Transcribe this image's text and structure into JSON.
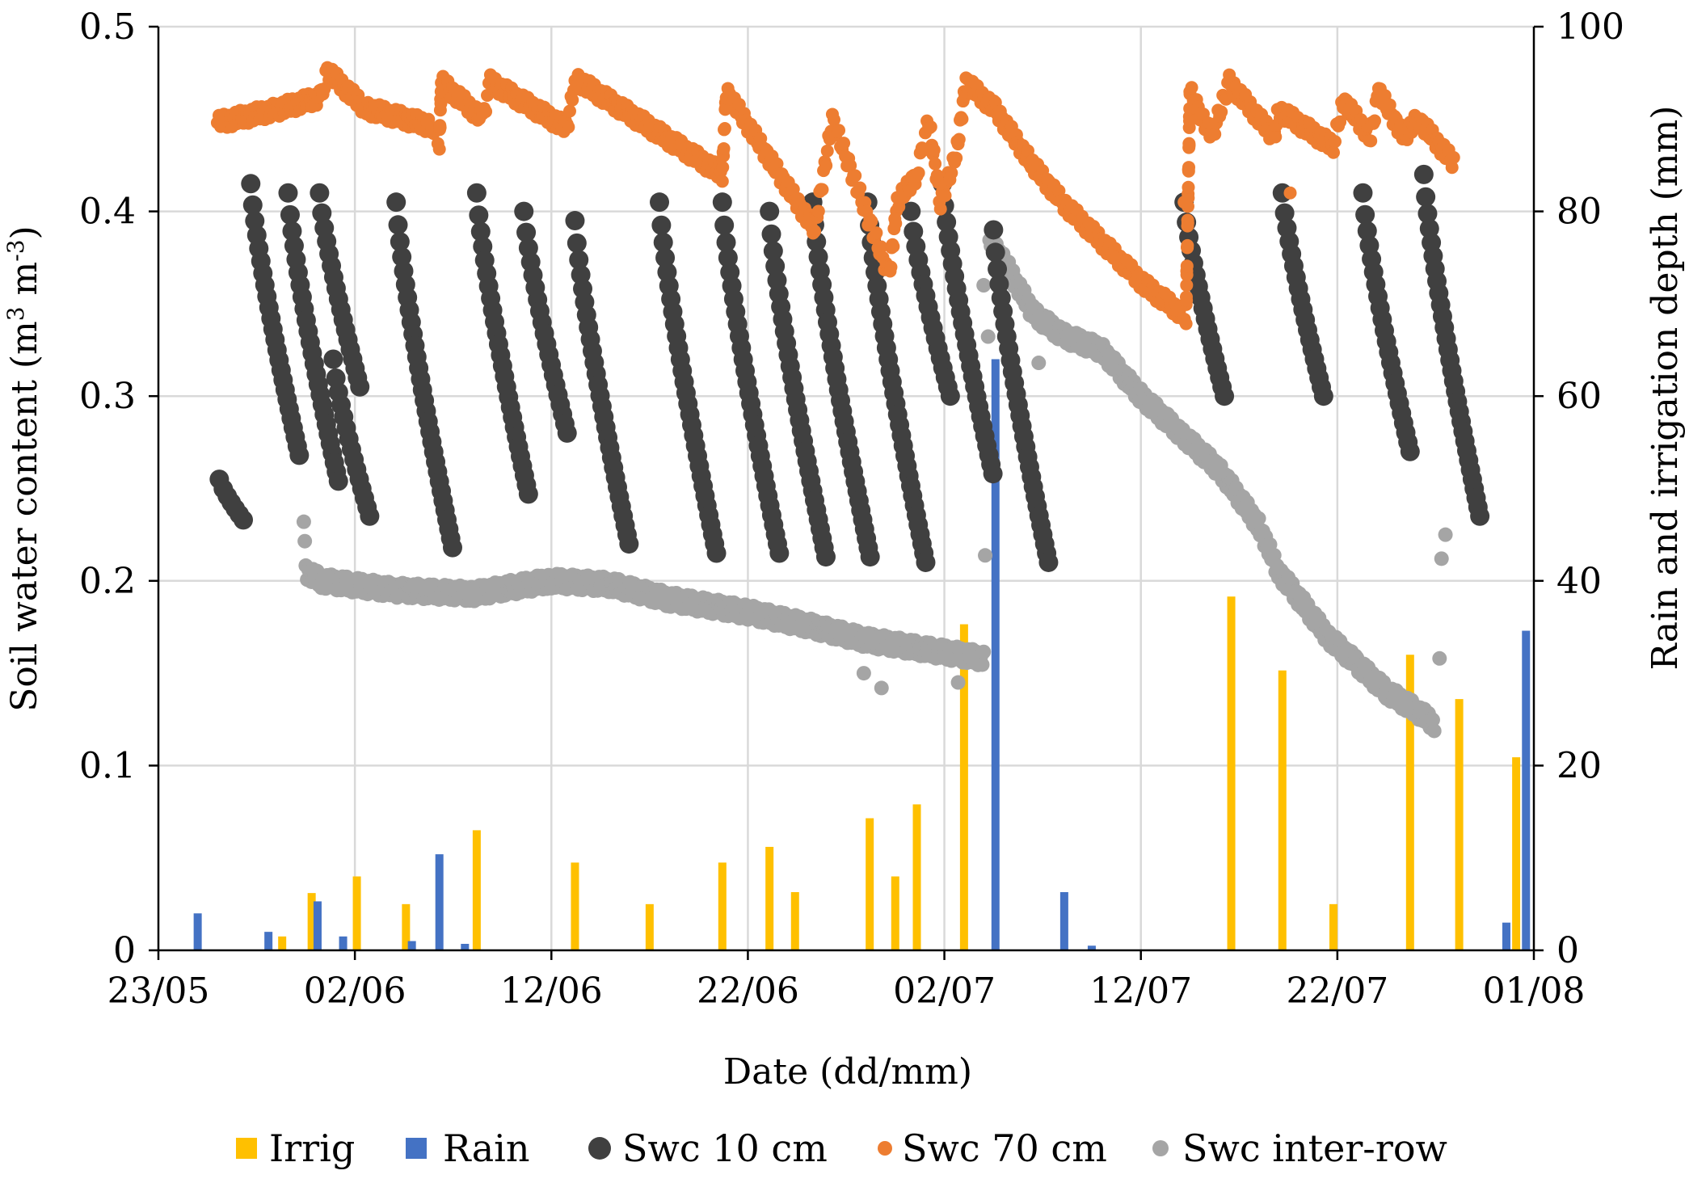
{
  "chart_data": {
    "type": "combo",
    "xlabel": "Date (dd/mm)",
    "ylabel_left": {
      "pre": "Soil water content (m",
      "sup1": "3",
      "mid": " m",
      "sup2": "-3",
      "post": ")"
    },
    "ylabel_right": "Rain and irrigation depth (mm)",
    "x_start_day": 0,
    "x_end_day": 70,
    "x_ticks": [
      {
        "day": 0,
        "label": "23/05"
      },
      {
        "day": 10,
        "label": "02/06"
      },
      {
        "day": 20,
        "label": "12/06"
      },
      {
        "day": 30,
        "label": "22/06"
      },
      {
        "day": 40,
        "label": "02/07"
      },
      {
        "day": 50,
        "label": "12/07"
      },
      {
        "day": 60,
        "label": "22/07"
      },
      {
        "day": 70,
        "label": "01/08"
      }
    ],
    "y_left_range": [
      0,
      0.5
    ],
    "y_left_ticks": [
      {
        "value": 0,
        "label": "0"
      },
      {
        "value": 0.1,
        "label": "0.1"
      },
      {
        "value": 0.2,
        "label": "0.2"
      },
      {
        "value": 0.3,
        "label": "0.3"
      },
      {
        "value": 0.4,
        "label": "0.4"
      },
      {
        "value": 0.5,
        "label": "0.5"
      }
    ],
    "y_right_range": [
      0,
      100
    ],
    "y_right_ticks": [
      {
        "value": 0,
        "label": "0"
      },
      {
        "value": 20,
        "label": "20"
      },
      {
        "value": 40,
        "label": "40"
      },
      {
        "value": 60,
        "label": "60"
      },
      {
        "value": 80,
        "label": "80"
      },
      {
        "value": 100,
        "label": "100"
      }
    ],
    "grid": true,
    "legend_position": "bottom",
    "legend": [
      "Irrig",
      "Rain",
      "Swc 10 cm",
      "Swc 70 cm",
      "Swc inter-row"
    ],
    "colors": {
      "irrig": "#FFC000",
      "rain": "#4472C4",
      "swc10": "#404040",
      "swc70": "#ED7D31",
      "interrow": "#A5A5A5",
      "grid": "#D9D9D9"
    },
    "irrigation_mm": [
      {
        "day": 6.3,
        "value": 1.5
      },
      {
        "day": 7.8,
        "value": 6.2
      },
      {
        "day": 10.1,
        "value": 8
      },
      {
        "day": 12.6,
        "value": 5
      },
      {
        "day": 16.2,
        "value": 13
      },
      {
        "day": 21.2,
        "value": 9.5
      },
      {
        "day": 25.0,
        "value": 5
      },
      {
        "day": 28.7,
        "value": 9.5
      },
      {
        "day": 31.1,
        "value": 11.2
      },
      {
        "day": 32.4,
        "value": 6.3
      },
      {
        "day": 36.2,
        "value": 14.3
      },
      {
        "day": 37.5,
        "value": 8
      },
      {
        "day": 38.6,
        "value": 15.8
      },
      {
        "day": 41.0,
        "value": 35.3
      },
      {
        "day": 54.6,
        "value": 38.3
      },
      {
        "day": 57.2,
        "value": 30.3
      },
      {
        "day": 59.8,
        "value": 5
      },
      {
        "day": 63.7,
        "value": 32
      },
      {
        "day": 66.2,
        "value": 27.2
      },
      {
        "day": 69.1,
        "value": 20.9
      }
    ],
    "rain_mm": [
      {
        "day": 2.0,
        "value": 4
      },
      {
        "day": 5.6,
        "value": 2
      },
      {
        "day": 8.1,
        "value": 5.3
      },
      {
        "day": 9.4,
        "value": 1.5
      },
      {
        "day": 12.9,
        "value": 1
      },
      {
        "day": 14.3,
        "value": 10.4
      },
      {
        "day": 15.6,
        "value": 0.7
      },
      {
        "day": 42.6,
        "value": 64
      },
      {
        "day": 46.1,
        "value": 6.3
      },
      {
        "day": 47.5,
        "value": 0.5
      },
      {
        "day": 68.6,
        "value": 3
      },
      {
        "day": 69.6,
        "value": 34.6
      }
    ],
    "swc_10cm_segments": [
      {
        "day": 3.1,
        "start": 0.255,
        "end": 0.233
      },
      {
        "day": 4.7,
        "start": 0.415,
        "end": 0.268
      },
      {
        "day": 6.6,
        "start": 0.41,
        "end": 0.254
      },
      {
        "day": 8.2,
        "start": 0.41,
        "end": 0.305
      },
      {
        "day": 8.9,
        "start": 0.32,
        "end": 0.235
      },
      {
        "day": 12.1,
        "start": 0.405,
        "end": 0.218
      },
      {
        "day": 16.2,
        "start": 0.41,
        "end": 0.247
      },
      {
        "day": 18.6,
        "start": 0.4,
        "end": 0.28
      },
      {
        "day": 21.2,
        "start": 0.395,
        "end": 0.22
      },
      {
        "day": 25.5,
        "start": 0.405,
        "end": 0.215
      },
      {
        "day": 28.7,
        "start": 0.405,
        "end": 0.215
      },
      {
        "day": 31.1,
        "start": 0.4,
        "end": 0.213
      },
      {
        "day": 33.3,
        "start": 0.405,
        "end": 0.213
      },
      {
        "day": 36.1,
        "start": 0.405,
        "end": 0.21
      },
      {
        "day": 38.3,
        "start": 0.4,
        "end": 0.3
      },
      {
        "day": 39.9,
        "start": 0.415,
        "end": 0.258
      },
      {
        "day": 42.5,
        "start": 0.39,
        "end": 0.21
      },
      {
        "day": 52.2,
        "start": 0.405,
        "end": 0.3
      },
      {
        "day": 57.2,
        "start": 0.41,
        "end": 0.3
      },
      {
        "day": 61.3,
        "start": 0.41,
        "end": 0.27
      },
      {
        "day": 64.4,
        "start": 0.42,
        "end": 0.235
      }
    ],
    "swc_70cm_points": [
      {
        "day": 3.0,
        "value": 0.448
      },
      {
        "day": 6.0,
        "value": 0.455
      },
      {
        "day": 8.3,
        "value": 0.462
      },
      {
        "day": 8.6,
        "value": 0.476
      },
      {
        "day": 10.5,
        "value": 0.456
      },
      {
        "day": 14.0,
        "value": 0.446
      },
      {
        "day": 14.3,
        "value": 0.437
      },
      {
        "day": 14.4,
        "value": 0.47
      },
      {
        "day": 16.5,
        "value": 0.45
      },
      {
        "day": 16.9,
        "value": 0.47
      },
      {
        "day": 20.8,
        "value": 0.445
      },
      {
        "day": 21.2,
        "value": 0.472
      },
      {
        "day": 28.7,
        "value": 0.42
      },
      {
        "day": 28.9,
        "value": 0.465
      },
      {
        "day": 33.4,
        "value": 0.39
      },
      {
        "day": 34.3,
        "value": 0.45
      },
      {
        "day": 37.2,
        "value": 0.365
      },
      {
        "day": 37.6,
        "value": 0.405
      },
      {
        "day": 38.6,
        "value": 0.42
      },
      {
        "day": 39.2,
        "value": 0.45
      },
      {
        "day": 39.8,
        "value": 0.405
      },
      {
        "day": 40.6,
        "value": 0.43
      },
      {
        "day": 41.1,
        "value": 0.47
      },
      {
        "day": 42.6,
        "value": 0.455
      },
      {
        "day": 44.5,
        "value": 0.425
      },
      {
        "day": 46.0,
        "value": 0.405
      },
      {
        "day": 50.2,
        "value": 0.36
      },
      {
        "day": 52.3,
        "value": 0.343
      },
      {
        "day": 52.5,
        "value": 0.465
      },
      {
        "day": 53.6,
        "value": 0.44
      },
      {
        "day": 54.5,
        "value": 0.47
      },
      {
        "day": 56.8,
        "value": 0.44
      },
      {
        "day": 57.0,
        "value": 0.455
      },
      {
        "day": 59.8,
        "value": 0.435
      },
      {
        "day": 60.3,
        "value": 0.46
      },
      {
        "day": 61.7,
        "value": 0.44
      },
      {
        "day": 62.1,
        "value": 0.465
      },
      {
        "day": 63.4,
        "value": 0.44
      },
      {
        "day": 63.7,
        "value": 0.445
      },
      {
        "day": 64.1,
        "value": 0.45
      },
      {
        "day": 66.0,
        "value": 0.425
      }
    ],
    "swc_interrow_points": [
      {
        "day": 7.4,
        "value": 0.232
      },
      {
        "day": 7.5,
        "value": 0.205
      },
      {
        "day": 8.3,
        "value": 0.2
      },
      {
        "day": 12.0,
        "value": 0.195
      },
      {
        "day": 16.0,
        "value": 0.193
      },
      {
        "day": 20.0,
        "value": 0.2
      },
      {
        "day": 23.0,
        "value": 0.198
      },
      {
        "day": 26.0,
        "value": 0.19
      },
      {
        "day": 30.0,
        "value": 0.183
      },
      {
        "day": 33.0,
        "value": 0.176
      },
      {
        "day": 36.0,
        "value": 0.168
      },
      {
        "day": 39.0,
        "value": 0.163
      },
      {
        "day": 42.0,
        "value": 0.158
      },
      {
        "day": 42.3,
        "value": 0.385
      },
      {
        "day": 43.2,
        "value": 0.37
      },
      {
        "day": 44.5,
        "value": 0.345
      },
      {
        "day": 46.0,
        "value": 0.333
      },
      {
        "day": 48.0,
        "value": 0.325
      },
      {
        "day": 50.0,
        "value": 0.3
      },
      {
        "day": 52.0,
        "value": 0.28
      },
      {
        "day": 54.0,
        "value": 0.26
      },
      {
        "day": 56.0,
        "value": 0.23
      },
      {
        "day": 57.0,
        "value": 0.205
      },
      {
        "day": 59.5,
        "value": 0.17
      },
      {
        "day": 61.0,
        "value": 0.155
      },
      {
        "day": 62.5,
        "value": 0.14
      },
      {
        "day": 64.0,
        "value": 0.13
      },
      {
        "day": 65.0,
        "value": 0.122
      }
    ],
    "swc_interrow_outliers": [
      {
        "day": 35.9,
        "value": 0.15
      },
      {
        "day": 36.8,
        "value": 0.142
      },
      {
        "day": 40.7,
        "value": 0.145
      },
      {
        "day": 42.0,
        "value": 0.36
      },
      {
        "day": 44.8,
        "value": 0.318
      },
      {
        "day": 65.2,
        "value": 0.158
      },
      {
        "day": 65.3,
        "value": 0.212
      },
      {
        "day": 65.5,
        "value": 0.225
      }
    ]
  }
}
